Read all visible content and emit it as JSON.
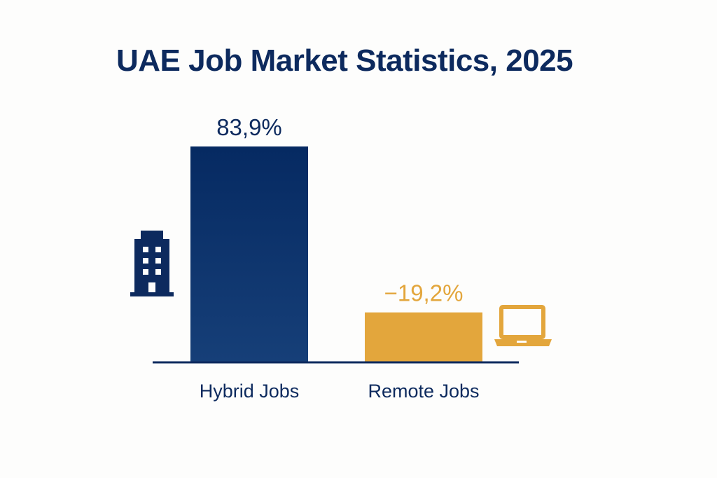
{
  "chart_data": {
    "type": "bar",
    "title": "UAE Job Market Statistics, 2025",
    "categories": [
      "Hybrid Jobs",
      "Remote Jobs"
    ],
    "values": [
      83.9,
      -19.2
    ],
    "value_labels": [
      "83,9%",
      "−19,2%"
    ],
    "colors": [
      "#0a2f66",
      "#e3a63c"
    ],
    "icons": [
      "office-building-icon",
      "laptop-icon"
    ],
    "xlabel": "",
    "ylabel": "",
    "grid": false,
    "legend": "none"
  },
  "colors": {
    "title": "#0d2a5e",
    "axis": "#0d2a5e",
    "hybrid": "#0a2f66",
    "remote": "#e3a63c"
  }
}
